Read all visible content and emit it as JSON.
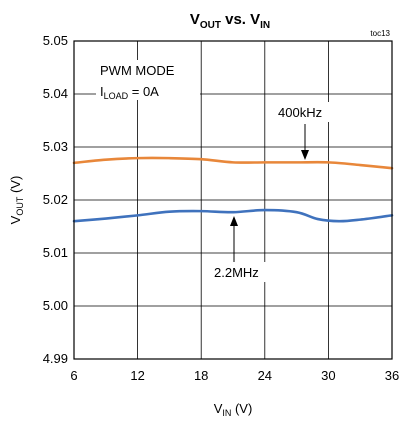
{
  "chart_data": {
    "type": "line",
    "title": "VOUT vs. VIN",
    "title_parts": {
      "a": "V",
      "a_sub": "OUT",
      "mid": " vs. ",
      "b": "V",
      "b_sub": "IN"
    },
    "figure_id": "toc13",
    "xlabel_parts": {
      "main": "V",
      "sub": "IN",
      "unit": " (V)"
    },
    "ylabel_parts": {
      "main": "V",
      "sub": "OUT",
      "unit": " (V)"
    },
    "xlim": [
      6,
      36
    ],
    "ylim": [
      4.99,
      5.05
    ],
    "x_ticks": [
      "6",
      "12",
      "18",
      "24",
      "30",
      "36"
    ],
    "y_ticks": [
      "5.05",
      "5.04",
      "5.03",
      "5.02",
      "5.01",
      "5.00",
      "4.99"
    ],
    "grid": true,
    "conditions": {
      "mode": "PWM MODE",
      "load_main": "I",
      "load_sub": "LOAD",
      "load_value": " = 0A"
    },
    "series": [
      {
        "name": "400kHz",
        "color": "#E8873A",
        "x": [
          6,
          9,
          12,
          15,
          18,
          21,
          24,
          27,
          30,
          33,
          36
        ],
        "y": [
          5.027,
          5.0276,
          5.0279,
          5.0279,
          5.0277,
          5.0271,
          5.0271,
          5.0271,
          5.0271,
          5.0266,
          5.026
        ]
      },
      {
        "name": "2.2MHz",
        "color": "#3F72BD",
        "x": [
          6,
          9,
          12,
          15,
          18,
          21,
          24,
          27,
          29,
          31,
          33,
          36
        ],
        "y": [
          5.016,
          5.0165,
          5.0171,
          5.0178,
          5.0179,
          5.0177,
          5.0181,
          5.0177,
          5.0164,
          5.016,
          5.0163,
          5.0171
        ]
      }
    ],
    "annotations": [
      {
        "text": "400kHz",
        "series": "400kHz"
      },
      {
        "text": "2.2MHz",
        "series": "2.2MHz"
      }
    ]
  }
}
